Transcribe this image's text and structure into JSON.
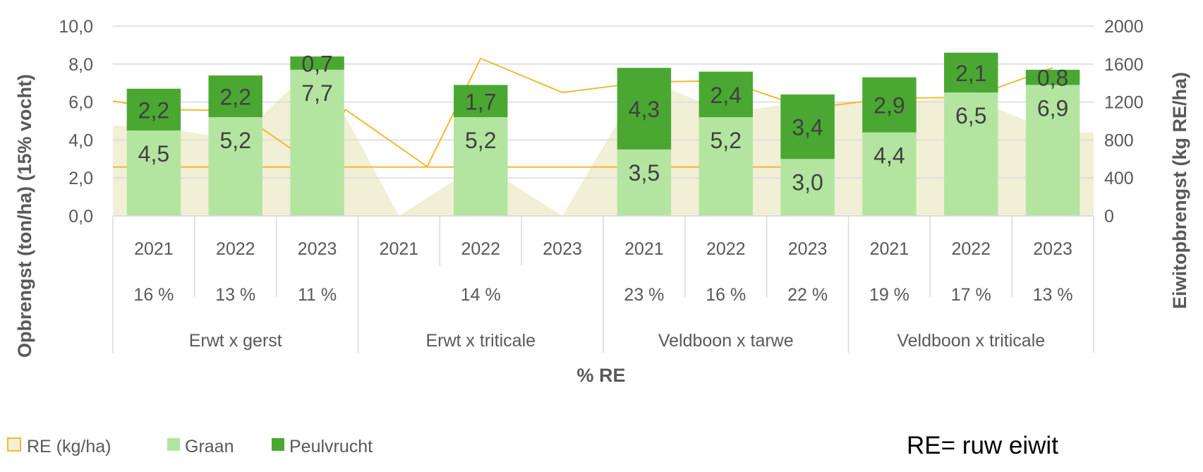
{
  "chart_data": {
    "type": "bar",
    "stacked": true,
    "title": "",
    "years": [
      "2021",
      "2022",
      "2023",
      "2021",
      "2022",
      "2023",
      "2021",
      "2022",
      "2023",
      "2021",
      "2022",
      "2023"
    ],
    "groups": [
      "Erwt x gerst",
      "Erwt x triticale",
      "Veldboon x tarwe",
      "Veldboon x triticale"
    ],
    "re_percent_labels": [
      "16 %",
      "13 %",
      "11 %",
      "14 %",
      "23 %",
      "16 %",
      "22 %",
      "19 %",
      "17 %",
      "13 %"
    ],
    "xlabel": "% RE",
    "ylabel_left": "Opbrengst (ton/ha) (15% vocht)",
    "ylabel_right": "Eiwitopbrengst (kg RE/ha)",
    "ylim_left": [
      0,
      10
    ],
    "ylim_right": [
      0,
      2000
    ],
    "yticks_left": [
      "0,0",
      "2,0",
      "4,0",
      "6,0",
      "8,0",
      "10,0"
    ],
    "yticks_right": [
      "0",
      "400",
      "800",
      "1200",
      "1600",
      "2000"
    ],
    "grid": true,
    "legend_position": "bottom-left",
    "series": [
      {
        "name": "Graan",
        "color": "#b3e5a0",
        "values": [
          4.5,
          5.2,
          7.7,
          null,
          5.2,
          null,
          3.5,
          5.2,
          3.0,
          4.4,
          6.5,
          6.9
        ],
        "labels": [
          "4,5",
          "5,2",
          "7,7",
          "",
          "5,2",
          "",
          "3,5",
          "5,2",
          "3,0",
          "4,4",
          "6,5",
          "6,9"
        ]
      },
      {
        "name": "Peulvrucht",
        "color": "#4aa832",
        "values": [
          2.2,
          2.2,
          0.7,
          null,
          1.7,
          null,
          4.3,
          2.4,
          3.4,
          2.9,
          2.1,
          0.8
        ],
        "labels": [
          "2,2",
          "2,2",
          "0,7",
          "",
          "1,7",
          "",
          "4,3",
          "2,4",
          "3,4",
          "2,9",
          "2,1",
          "0,8"
        ]
      },
      {
        "name": "RE (kg/ha)",
        "color": "#f1efd6",
        "stroke": "#f5b82e",
        "axis": "right",
        "values": [
          950,
          800,
          1600,
          0,
          550,
          0,
          1460,
          1080,
          1210,
          1200,
          1250,
          880
        ]
      }
    ],
    "note": "RE= ruw eiwit"
  }
}
